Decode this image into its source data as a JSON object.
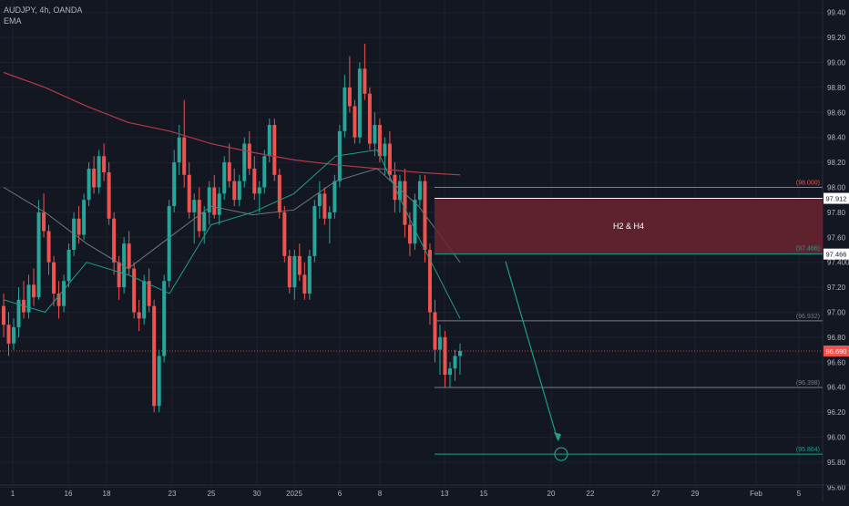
{
  "symbol_line": "AUDJPY, 4h, OANDA",
  "indicator_label": "EMA",
  "colors": {
    "background": "#131722",
    "grid": "#1e222d",
    "up": "#26a69a",
    "down": "#ef5350",
    "ema_long": "#b23a48",
    "ema_mid": "#6b7a76",
    "ema_short": "#1f9e89",
    "zone_fill": "#6b2530",
    "projection": "#1f9e89"
  },
  "chart_data": {
    "type": "candlestick",
    "title": "AUDJPY, 4h, OANDA",
    "ylim": [
      95.5,
      99.5
    ],
    "y_ticks": [
      "99.40",
      "99.20",
      "99.00",
      "98.80",
      "98.60",
      "98.40",
      "98.20",
      "98.00",
      "97.80",
      "97.60",
      "97.400",
      "97.20",
      "97.00",
      "96.80",
      "96.60",
      "96.40",
      "96.20",
      "96.00",
      "95.80",
      "95.60"
    ],
    "x_ticks": [
      "1",
      "16",
      "18",
      "23",
      "25",
      "30",
      "2025",
      "6",
      "8",
      "13",
      "15",
      "20",
      "22",
      "27",
      "29",
      "Feb",
      "5"
    ],
    "candles_ohlc": [
      [
        97.05,
        97.15,
        96.8,
        96.9
      ],
      [
        96.9,
        97.0,
        96.65,
        96.75
      ],
      [
        96.75,
        96.95,
        96.7,
        96.88
      ],
      [
        96.88,
        97.2,
        96.8,
        97.1
      ],
      [
        97.1,
        97.25,
        96.95,
        97.0
      ],
      [
        97.0,
        97.3,
        96.95,
        97.22
      ],
      [
        97.22,
        97.35,
        97.05,
        97.12
      ],
      [
        97.12,
        97.9,
        97.1,
        97.8
      ],
      [
        97.8,
        97.95,
        97.6,
        97.65
      ],
      [
        97.65,
        97.7,
        97.3,
        97.4
      ],
      [
        97.4,
        97.45,
        97.05,
        97.15
      ],
      [
        97.15,
        97.25,
        96.95,
        97.05
      ],
      [
        97.05,
        97.3,
        97.0,
        97.25
      ],
      [
        97.25,
        97.55,
        97.2,
        97.5
      ],
      [
        97.5,
        97.8,
        97.45,
        97.75
      ],
      [
        97.75,
        97.85,
        97.55,
        97.62
      ],
      [
        97.62,
        97.95,
        97.58,
        97.9
      ],
      [
        97.9,
        98.2,
        97.85,
        98.15
      ],
      [
        98.15,
        98.25,
        97.95,
        98.0
      ],
      [
        98.0,
        98.3,
        97.95,
        98.25
      ],
      [
        98.25,
        98.35,
        98.05,
        98.12
      ],
      [
        98.12,
        98.2,
        97.7,
        97.75
      ],
      [
        97.75,
        97.8,
        97.3,
        97.4
      ],
      [
        97.4,
        97.45,
        97.1,
        97.2
      ],
      [
        97.2,
        97.6,
        97.15,
        97.55
      ],
      [
        97.55,
        97.65,
        97.3,
        97.35
      ],
      [
        97.35,
        97.4,
        96.95,
        97.0
      ],
      [
        97.0,
        97.1,
        96.85,
        96.95
      ],
      [
        96.95,
        97.3,
        96.9,
        97.25
      ],
      [
        97.25,
        97.35,
        97.0,
        97.05
      ],
      [
        97.05,
        97.1,
        96.2,
        96.25
      ],
      [
        96.25,
        96.7,
        96.2,
        96.65
      ],
      [
        96.65,
        97.3,
        96.6,
        97.25
      ],
      [
        97.25,
        97.9,
        97.2,
        97.85
      ],
      [
        97.85,
        98.3,
        97.8,
        98.2
      ],
      [
        98.2,
        98.5,
        98.1,
        98.4
      ],
      [
        98.4,
        98.7,
        98.0,
        98.1
      ],
      [
        98.1,
        98.2,
        97.75,
        97.8
      ],
      [
        97.8,
        97.95,
        97.55,
        97.9
      ],
      [
        97.9,
        98.0,
        97.6,
        97.65
      ],
      [
        97.65,
        97.85,
        97.55,
        97.8
      ],
      [
        97.8,
        98.05,
        97.7,
        98.0
      ],
      [
        98.0,
        98.1,
        97.75,
        97.78
      ],
      [
        97.78,
        98.0,
        97.7,
        97.95
      ],
      [
        97.95,
        98.25,
        97.9,
        98.2
      ],
      [
        98.2,
        98.35,
        98.0,
        98.05
      ],
      [
        98.05,
        98.15,
        97.85,
        97.9
      ],
      [
        97.9,
        98.1,
        97.85,
        98.05
      ],
      [
        98.05,
        98.4,
        98.0,
        98.35
      ],
      [
        98.35,
        98.45,
        98.1,
        98.15
      ],
      [
        98.15,
        98.25,
        97.9,
        97.95
      ],
      [
        97.95,
        98.05,
        97.8,
        98.0
      ],
      [
        98.0,
        98.3,
        97.95,
        98.25
      ],
      [
        98.25,
        98.55,
        98.2,
        98.5
      ],
      [
        98.5,
        98.55,
        98.05,
        98.1
      ],
      [
        98.1,
        98.15,
        97.75,
        97.8
      ],
      [
        97.8,
        97.85,
        97.4,
        97.45
      ],
      [
        97.45,
        97.5,
        97.15,
        97.2
      ],
      [
        97.2,
        97.5,
        97.1,
        97.45
      ],
      [
        97.45,
        97.55,
        97.25,
        97.3
      ],
      [
        97.3,
        97.4,
        97.1,
        97.15
      ],
      [
        97.15,
        97.5,
        97.1,
        97.45
      ],
      [
        97.45,
        97.9,
        97.4,
        97.85
      ],
      [
        97.85,
        98.05,
        97.75,
        97.95
      ],
      [
        97.95,
        98.0,
        97.7,
        97.75
      ],
      [
        97.75,
        97.85,
        97.55,
        97.8
      ],
      [
        97.8,
        98.1,
        97.75,
        98.05
      ],
      [
        98.05,
        98.5,
        98.0,
        98.45
      ],
      [
        98.45,
        98.9,
        98.4,
        98.8
      ],
      [
        98.8,
        99.05,
        98.6,
        98.65
      ],
      [
        98.65,
        98.7,
        98.35,
        98.4
      ],
      [
        98.4,
        99.0,
        98.35,
        98.95
      ],
      [
        98.95,
        99.15,
        98.7,
        98.75
      ],
      [
        98.75,
        98.8,
        98.3,
        98.35
      ],
      [
        98.35,
        98.6,
        98.25,
        98.5
      ],
      [
        98.5,
        98.55,
        98.2,
        98.25
      ],
      [
        98.25,
        98.4,
        98.1,
        98.35
      ],
      [
        98.35,
        98.45,
        98.05,
        98.1
      ],
      [
        98.1,
        98.2,
        97.8,
        97.9
      ],
      [
        97.9,
        98.1,
        97.8,
        98.05
      ],
      [
        98.05,
        98.15,
        97.6,
        97.7
      ],
      [
        97.7,
        97.8,
        97.45,
        97.55
      ],
      [
        97.55,
        97.95,
        97.5,
        97.9
      ],
      [
        97.9,
        98.1,
        97.85,
        98.05
      ],
      [
        98.05,
        98.1,
        97.4,
        97.5
      ],
      [
        97.5,
        97.55,
        96.9,
        97.0
      ],
      [
        97.0,
        97.1,
        96.6,
        96.7
      ],
      [
        96.7,
        96.9,
        96.5,
        96.8
      ],
      [
        96.8,
        96.85,
        96.4,
        96.5
      ],
      [
        96.5,
        96.6,
        96.4,
        96.55
      ],
      [
        96.55,
        96.7,
        96.45,
        96.65
      ],
      [
        96.65,
        96.75,
        96.5,
        96.69
      ]
    ],
    "ema_long": [
      98.92,
      98.8,
      98.65,
      98.52,
      98.45,
      98.35,
      98.28,
      98.22,
      98.18,
      98.15,
      98.12,
      98.1
    ],
    "ema_mid": [
      98.0,
      97.8,
      97.55,
      97.35,
      97.6,
      97.85,
      97.78,
      97.82,
      98.05,
      98.15,
      97.85,
      97.4
    ],
    "ema_short": [
      97.1,
      97.0,
      97.4,
      97.3,
      97.15,
      97.7,
      97.8,
      97.95,
      98.25,
      98.3,
      97.6,
      96.95
    ],
    "zone": {
      "label": "H2 & H4",
      "top": 97.912,
      "bottom": 97.466,
      "top_label": "97.912",
      "bottom_label": "97.466",
      "upper_ref_label": "(98.000)",
      "upper_ref": 98.0,
      "lower_ref_label": "(97.466)"
    },
    "levels": [
      {
        "value": 96.932,
        "label": "(96.932)"
      },
      {
        "value": 96.398,
        "label": "(96.398)"
      },
      {
        "value": 95.864,
        "label": "(95.864)"
      }
    ],
    "current_price": {
      "value": 96.69,
      "label": "96.690"
    },
    "projection": {
      "from": 97.466,
      "to": 95.864
    }
  }
}
